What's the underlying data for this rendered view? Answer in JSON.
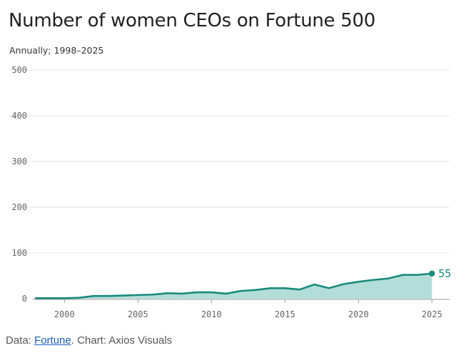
{
  "header": {
    "title": "Number of women CEOs on Fortune 500",
    "subtitle": "Annually; 1998–2025"
  },
  "footer": {
    "data_prefix": "Data: ",
    "source_link": "Fortune",
    "suffix": ". Chart: Axios Visuals"
  },
  "colors": {
    "line": "#1a8a7c",
    "area": "#b3ddd8",
    "grid": "#e4e4e4",
    "baseline": "#999999"
  },
  "chart_data": {
    "type": "area",
    "title": "Number of women CEOs on Fortune 500",
    "subtitle": "Annually; 1998–2025",
    "xlabel": "",
    "ylabel": "",
    "ylim": [
      0,
      500
    ],
    "yticks": [
      0,
      100,
      200,
      300,
      400,
      500
    ],
    "xticks": [
      2000,
      2005,
      2010,
      2015,
      2020,
      2025
    ],
    "grid": true,
    "legend": "none",
    "x": [
      1998,
      1999,
      2000,
      2001,
      2002,
      2003,
      2004,
      2005,
      2006,
      2007,
      2008,
      2009,
      2010,
      2011,
      2012,
      2013,
      2014,
      2015,
      2016,
      2017,
      2018,
      2019,
      2020,
      2021,
      2022,
      2023,
      2024,
      2025
    ],
    "values": [
      1,
      1,
      1,
      2,
      6,
      6,
      7,
      8,
      9,
      12,
      11,
      14,
      14,
      11,
      17,
      19,
      23,
      23,
      20,
      31,
      23,
      32,
      37,
      41,
      44,
      52,
      52,
      55
    ],
    "end_label": "55"
  }
}
